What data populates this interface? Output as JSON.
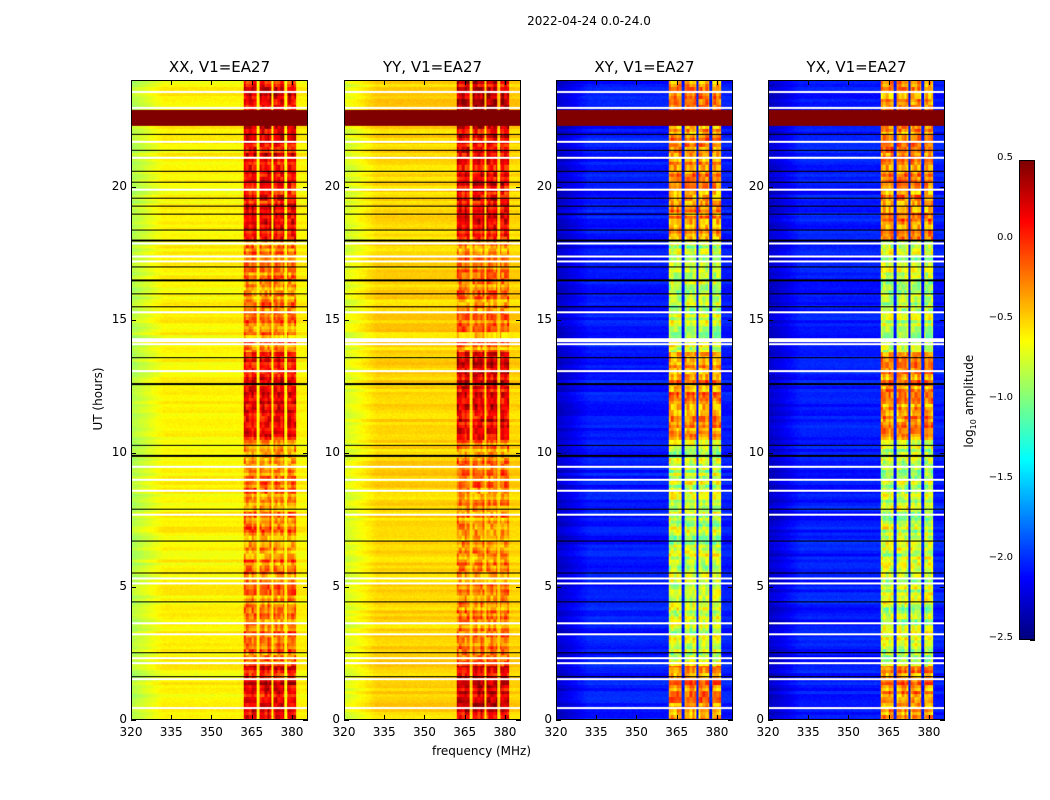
{
  "figure": {
    "suptitle": "2022-04-24 0.0-24.0",
    "ylabel": "UT (hours)",
    "xlabel": "frequency (MHz)"
  },
  "chart_data": {
    "type": "heatmap",
    "title": "2022-04-24 0.0-24.0",
    "xlabel": "frequency (MHz)",
    "ylabel": "UT (hours)",
    "xlim": [
      320,
      386
    ],
    "ylim": [
      0,
      24
    ],
    "xticks": [
      "320",
      "335",
      "350",
      "365",
      "380"
    ],
    "xtick_values": [
      320,
      335,
      350,
      365,
      380
    ],
    "yticks": [
      "0",
      "5",
      "10",
      "15",
      "20"
    ],
    "ytick_values": [
      0,
      5,
      10,
      15,
      20
    ],
    "colorbar": {
      "label": "log10 amplitude",
      "label_main": "log",
      "label_sub": "10",
      "label_rest": " amplitude",
      "range": [
        -2.5,
        0.5
      ],
      "ticks": [
        "0.5",
        "0.0",
        "−0.5",
        "−1.0",
        "−1.5",
        "−2.0",
        "−2.5"
      ],
      "tick_values": [
        0.5,
        0.0,
        -0.5,
        -1.0,
        -1.5,
        -2.0,
        -2.5
      ],
      "colormap": "jet"
    },
    "rfi_bands_mhz": [
      [
        362,
        367
      ],
      [
        368,
        372.5
      ],
      [
        373.5,
        377.5
      ],
      [
        378.5,
        382
      ]
    ],
    "rfi_active_periods_h": [
      [
        0,
        2
      ],
      [
        10.5,
        13.8
      ],
      [
        18,
        24
      ]
    ],
    "high_amplitude_period_h": [
      22.3,
      22.9
    ],
    "flagged_white_h": [
      0.4,
      1.5,
      2.1,
      2.3,
      3.2,
      3.6,
      5.1,
      5.3,
      7.7,
      8.6,
      9.0,
      9.5,
      13.1,
      14.1,
      14.2,
      14.3,
      15.3,
      17.2,
      17.4,
      17.9,
      19.9,
      21.1,
      21.7,
      23.0,
      23.6
    ],
    "flagged_black_h": [
      1.6,
      2.5,
      4.4,
      5.5,
      6.7,
      7.9,
      9.9,
      10.3,
      12.6,
      13.6,
      15.5,
      16.0,
      16.5,
      17.0,
      18.0,
      18.4,
      19.0,
      19.3,
      19.6,
      20.2,
      20.6,
      21.4,
      22.0
    ],
    "panels": [
      {
        "title": "XX, V1=EA27",
        "baseline_log_amp": -0.6,
        "edge_log_amp": -0.85,
        "rfi_log_amp": 0.15,
        "rfi_quiet_log_amp": -0.25
      },
      {
        "title": "YY, V1=EA27",
        "baseline_log_amp": -0.5,
        "edge_log_amp": -0.75,
        "rfi_log_amp": 0.2,
        "rfi_quiet_log_amp": -0.25
      },
      {
        "title": "XY, V1=EA27",
        "baseline_log_amp": -2.05,
        "edge_log_amp": -2.3,
        "rfi_log_amp": -0.3,
        "rfi_quiet_log_amp": -0.8
      },
      {
        "title": "YX, V1=EA27",
        "baseline_log_amp": -2.05,
        "edge_log_amp": -2.3,
        "rfi_log_amp": -0.3,
        "rfi_quiet_log_amp": -0.8
      }
    ]
  }
}
